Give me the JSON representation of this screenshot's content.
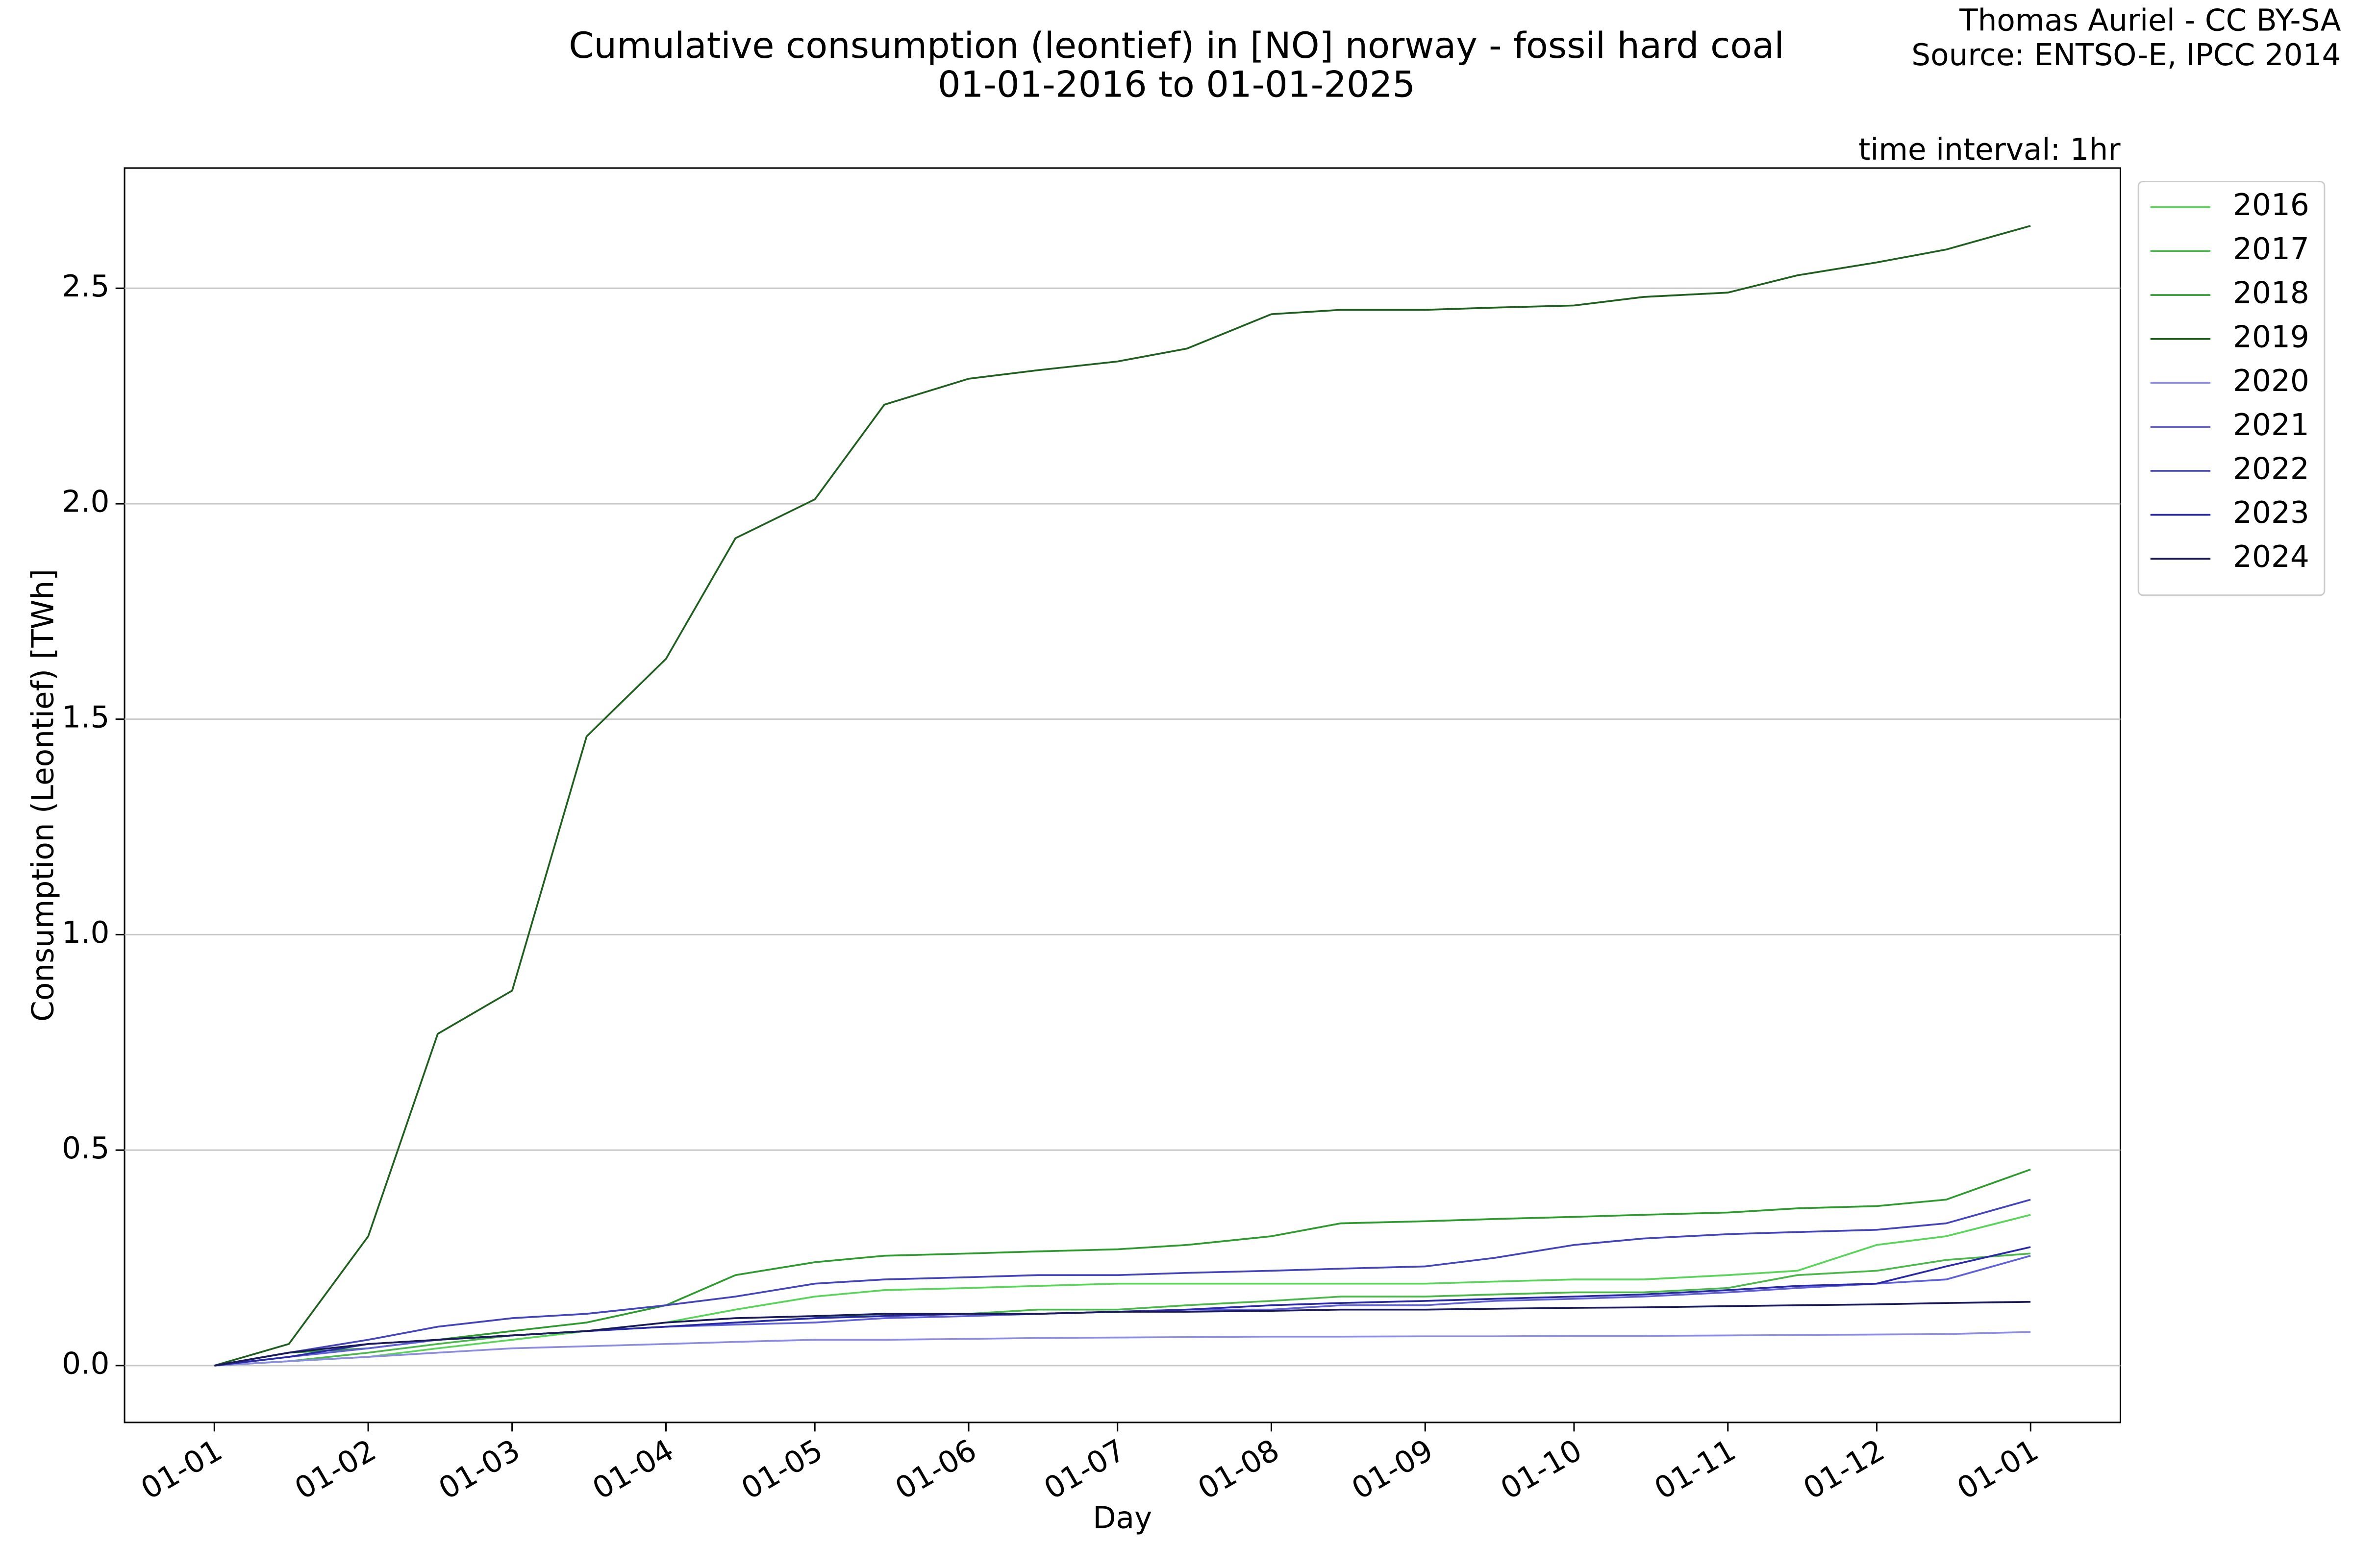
{
  "chart_data": {
    "type": "line",
    "title": "Cumulative consumption (leontief) in [NO] norway - fossil hard coal",
    "subtitle": "01-01-2016 to 01-01-2025",
    "credits": [
      "Thomas Auriel - CC BY-SA",
      "Source: ENTSO-E, IPCC 2014"
    ],
    "annotation": "time interval: 1hr",
    "x_label": "Day",
    "y_label": "Consumption (Leontief) [TWh]",
    "x": [
      0,
      15,
      31,
      45,
      60,
      75,
      91,
      105,
      121,
      135,
      152,
      166,
      182,
      196,
      213,
      227,
      244,
      258,
      274,
      288,
      305,
      319,
      335,
      349,
      366
    ],
    "series": [
      {
        "name": "2016",
        "color": "#5ad45a",
        "values": [
          0,
          0.01,
          0.02,
          0.04,
          0.06,
          0.08,
          0.1,
          0.13,
          0.16,
          0.175,
          0.18,
          0.185,
          0.19,
          0.19,
          0.19,
          0.19,
          0.19,
          0.195,
          0.2,
          0.2,
          0.21,
          0.22,
          0.28,
          0.3,
          0.35
        ]
      },
      {
        "name": "2017",
        "color": "#4cb84c",
        "values": [
          0,
          0.01,
          0.03,
          0.05,
          0.07,
          0.08,
          0.09,
          0.1,
          0.11,
          0.12,
          0.12,
          0.13,
          0.13,
          0.14,
          0.15,
          0.16,
          0.16,
          0.165,
          0.17,
          0.17,
          0.18,
          0.21,
          0.22,
          0.245,
          0.26
        ]
      },
      {
        "name": "2018",
        "color": "#2f9a2f",
        "values": [
          0,
          0.03,
          0.04,
          0.06,
          0.08,
          0.1,
          0.14,
          0.21,
          0.24,
          0.255,
          0.26,
          0.265,
          0.27,
          0.28,
          0.3,
          0.33,
          0.335,
          0.34,
          0.345,
          0.35,
          0.355,
          0.365,
          0.37,
          0.385,
          0.455
        ]
      },
      {
        "name": "2019",
        "color": "#1f5f1f",
        "values": [
          0,
          0.05,
          0.3,
          0.77,
          0.87,
          1.46,
          1.64,
          1.92,
          2.01,
          2.23,
          2.29,
          2.31,
          2.33,
          2.36,
          2.44,
          2.45,
          2.45,
          2.455,
          2.46,
          2.48,
          2.49,
          2.53,
          2.56,
          2.59,
          2.645
        ]
      },
      {
        "name": "2020",
        "color": "#8c8ce0",
        "values": [
          0,
          0.01,
          0.02,
          0.03,
          0.04,
          0.045,
          0.05,
          0.055,
          0.06,
          0.06,
          0.062,
          0.064,
          0.065,
          0.066,
          0.067,
          0.067,
          0.068,
          0.068,
          0.069,
          0.069,
          0.07,
          0.071,
          0.072,
          0.073,
          0.078
        ]
      },
      {
        "name": "2021",
        "color": "#6060d8",
        "values": [
          0,
          0.02,
          0.04,
          0.06,
          0.07,
          0.08,
          0.09,
          0.095,
          0.1,
          0.11,
          0.115,
          0.12,
          0.125,
          0.13,
          0.13,
          0.14,
          0.14,
          0.15,
          0.155,
          0.16,
          0.17,
          0.18,
          0.19,
          0.2,
          0.255
        ]
      },
      {
        "name": "2022",
        "color": "#4444bb",
        "values": [
          0,
          0.03,
          0.06,
          0.09,
          0.11,
          0.12,
          0.14,
          0.16,
          0.19,
          0.2,
          0.205,
          0.21,
          0.21,
          0.215,
          0.22,
          0.225,
          0.23,
          0.25,
          0.28,
          0.295,
          0.305,
          0.31,
          0.315,
          0.33,
          0.385
        ]
      },
      {
        "name": "2023",
        "color": "#2828a8",
        "values": [
          0,
          0.02,
          0.05,
          0.06,
          0.07,
          0.08,
          0.09,
          0.1,
          0.11,
          0.115,
          0.12,
          0.12,
          0.125,
          0.13,
          0.14,
          0.145,
          0.15,
          0.155,
          0.16,
          0.165,
          0.175,
          0.185,
          0.19,
          0.23,
          0.275
        ]
      },
      {
        "name": "2024",
        "color": "#1a1a5a",
        "values": [
          0,
          0.03,
          0.05,
          0.06,
          0.07,
          0.08,
          0.1,
          0.11,
          0.115,
          0.12,
          0.12,
          0.12,
          0.125,
          0.125,
          0.127,
          0.13,
          0.13,
          0.132,
          0.134,
          0.135,
          0.138,
          0.14,
          0.142,
          0.145,
          0.148
        ]
      }
    ],
    "xlim": [
      -18.1,
      384.1
    ],
    "xticks": [
      {
        "value": 0,
        "label": "01-01"
      },
      {
        "value": 31,
        "label": "01-02"
      },
      {
        "value": 60,
        "label": "01-03"
      },
      {
        "value": 91,
        "label": "01-04"
      },
      {
        "value": 121,
        "label": "01-05"
      },
      {
        "value": 152,
        "label": "01-06"
      },
      {
        "value": 182,
        "label": "01-07"
      },
      {
        "value": 213,
        "label": "01-08"
      },
      {
        "value": 244,
        "label": "01-09"
      },
      {
        "value": 274,
        "label": "01-10"
      },
      {
        "value": 305,
        "label": "01-11"
      },
      {
        "value": 335,
        "label": "01-12"
      },
      {
        "value": 366,
        "label": "01-01"
      }
    ],
    "ylim": [
      -0.132,
      2.779
    ],
    "yticks": [
      {
        "value": 0,
        "label": "0.0"
      },
      0.5,
      {
        "value": 1,
        "label": "1.0"
      },
      1.5,
      {
        "value": 2,
        "label": "2.0"
      },
      2.5
    ],
    "grid": true,
    "legend": "outside-upper-right"
  }
}
